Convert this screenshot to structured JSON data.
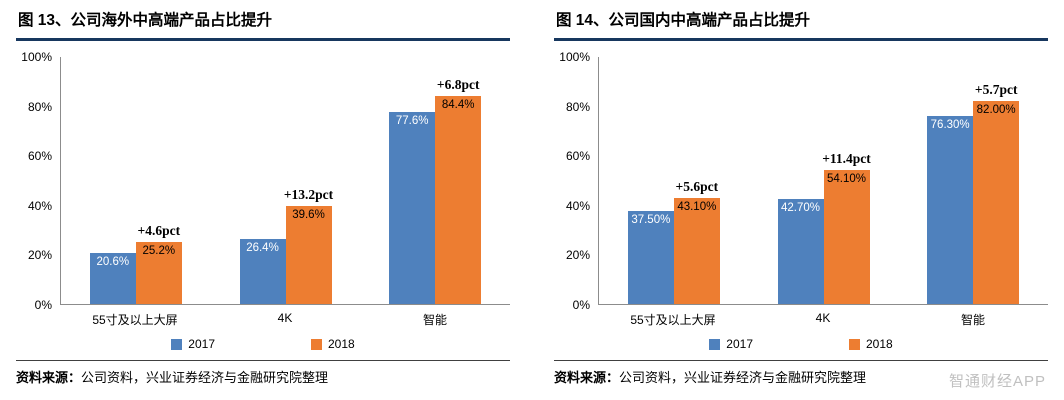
{
  "watermark": "智通财经APP",
  "colors": {
    "series_2017": "#4F81BD",
    "series_2018": "#ED7D31",
    "title_underline": "#17375E",
    "axis_line": "#8C8C8C",
    "watermark_text": "#C0C0C0"
  },
  "chart_data": [
    {
      "type": "bar",
      "title": "图 13、公司海外中高端产品占比提升",
      "categories": [
        "55寸及以上大屏",
        "4K",
        "智能"
      ],
      "series": [
        {
          "name": "2017",
          "color": "#4F81BD",
          "label_color": "#FFFFFF",
          "values": [
            20.6,
            26.4,
            77.6
          ],
          "labels": [
            "20.6%",
            "26.4%",
            "77.6%"
          ]
        },
        {
          "name": "2018",
          "color": "#ED7D31",
          "label_color": "#000000",
          "values": [
            25.2,
            39.6,
            84.4
          ],
          "labels": [
            "25.2%",
            "39.6%",
            "84.4%"
          ]
        }
      ],
      "annotations": [
        "+4.6pct",
        "+13.2pct",
        "+6.8pct"
      ],
      "xlabel": "",
      "ylabel": "",
      "ylim": [
        0,
        100
      ],
      "yticks": [
        "0%",
        "20%",
        "40%",
        "60%",
        "80%",
        "100%"
      ],
      "grid": false,
      "legend_position": "bottom",
      "source_label": "资料来源：",
      "source_text": "公司资料，兴业证券经济与金融研究院整理"
    },
    {
      "type": "bar",
      "title": "图 14、公司国内中高端产品占比提升",
      "categories": [
        "55寸及以上大屏",
        "4K",
        "智能"
      ],
      "series": [
        {
          "name": "2017",
          "color": "#4F81BD",
          "label_color": "#FFFFFF",
          "values": [
            37.5,
            42.7,
            76.3
          ],
          "labels": [
            "37.50%",
            "42.70%",
            "76.30%"
          ]
        },
        {
          "name": "2018",
          "color": "#ED7D31",
          "label_color": "#000000",
          "values": [
            43.1,
            54.1,
            82.0
          ],
          "labels": [
            "43.10%",
            "54.10%",
            "82.00%"
          ]
        }
      ],
      "annotations": [
        "+5.6pct",
        "+11.4pct",
        "+5.7pct"
      ],
      "xlabel": "",
      "ylabel": "",
      "ylim": [
        0,
        100
      ],
      "yticks": [
        "0%",
        "20%",
        "40%",
        "60%",
        "80%",
        "100%"
      ],
      "grid": false,
      "legend_position": "bottom",
      "source_label": "资料来源：",
      "source_text": "公司资料，兴业证券经济与金融研究院整理"
    }
  ]
}
